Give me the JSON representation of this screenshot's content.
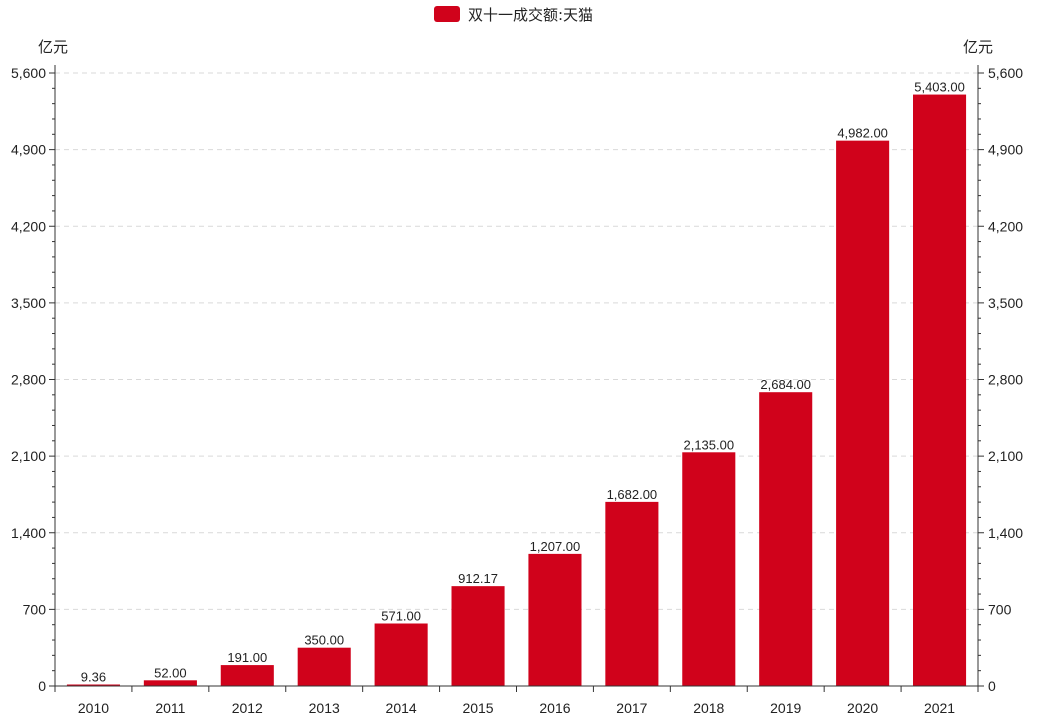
{
  "chart_data": {
    "type": "bar",
    "legend": {
      "label": "双十一成交额:天猫",
      "color": "#d0021b",
      "position": "top-center"
    },
    "units": {
      "left": "亿元",
      "right": "亿元"
    },
    "categories": [
      "2010",
      "2011",
      "2012",
      "2013",
      "2014",
      "2015",
      "2016",
      "2017",
      "2018",
      "2019",
      "2020",
      "2021"
    ],
    "values": [
      9.36,
      52,
      191,
      350,
      571,
      912.17,
      1207,
      1682,
      2135,
      2684,
      4982,
      5403
    ],
    "value_labels": [
      "9.36",
      "52.00",
      "191.00",
      "350.00",
      "571.00",
      "912.17",
      "1,207.00",
      "1,682.00",
      "2,135.00",
      "2,684.00",
      "4,982.00",
      "5,403.00"
    ],
    "yticks": [
      0,
      700,
      1400,
      2100,
      2800,
      3500,
      4200,
      4900,
      5600
    ],
    "ytick_labels": [
      "0",
      "700",
      "1,400",
      "2,100",
      "2,800",
      "3,500",
      "4,200",
      "4,900",
      "5,600"
    ],
    "ylim": [
      0,
      5600
    ],
    "grid": true,
    "bar_color": "#d0021b"
  }
}
